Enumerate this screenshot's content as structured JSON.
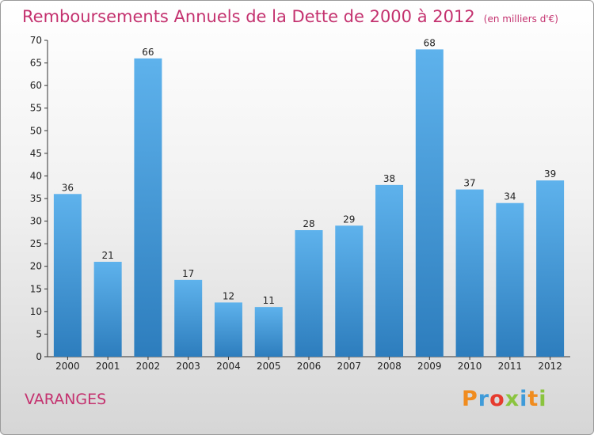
{
  "header": {
    "title": "Remboursements Annuels de la Dette de 2000 à 2012",
    "unit": "(en milliers d'€)"
  },
  "commune": "VARANGES",
  "brand": {
    "letters": [
      "P",
      "r",
      "o",
      "x",
      "i",
      "t",
      "i"
    ],
    "colors": [
      "#f08c1f",
      "#3f9bd9",
      "#e63b2e",
      "#8bc43f",
      "#3f9bd9",
      "#f08c1f",
      "#8bc43f"
    ]
  },
  "chart_data": {
    "type": "bar",
    "title": "Remboursements Annuels de la Dette de 2000 à 2012",
    "xlabel": "",
    "ylabel": "",
    "ylim": [
      0,
      70
    ],
    "yticks": [
      0,
      5,
      10,
      15,
      20,
      25,
      30,
      35,
      40,
      45,
      50,
      55,
      60,
      65,
      70
    ],
    "grid": false,
    "categories": [
      "2000",
      "2001",
      "2002",
      "2003",
      "2004",
      "2005",
      "2006",
      "2007",
      "2008",
      "2009",
      "2010",
      "2011",
      "2012"
    ],
    "values": [
      36,
      21,
      66,
      17,
      12,
      11,
      28,
      29,
      38,
      68,
      37,
      34,
      39
    ],
    "bar_color": "#4a9fdf"
  }
}
